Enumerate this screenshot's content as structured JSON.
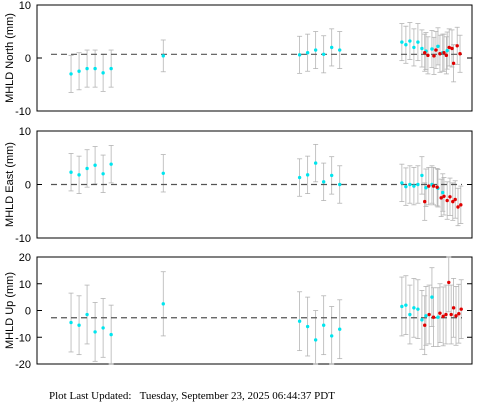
{
  "footer": {
    "label": "Plot Last Updated:",
    "value": "Tuesday, September 23, 2025 06:44:37 PDT"
  },
  "colors": {
    "cyan": "#00e5ee",
    "red": "#e00000",
    "error_bar": "#b4b4b4",
    "reference": "#555555",
    "axis": "#000000"
  },
  "chart_data": [
    {
      "type": "scatter",
      "ylabel": "MHLD North (mm)",
      "ylim": [
        -10,
        10
      ],
      "yticks": [
        -10,
        0,
        10
      ],
      "xlim": [
        0,
        100
      ],
      "reference_line": 0.7,
      "series": [
        {
          "color": "cyan",
          "points": [
            {
              "x": 4,
              "y": -3,
              "e": 3.5
            },
            {
              "x": 6,
              "y": -2.5,
              "e": 3.5
            },
            {
              "x": 8,
              "y": -2,
              "e": 3.5
            },
            {
              "x": 10,
              "y": -2,
              "e": 3.5
            },
            {
              "x": 12,
              "y": -2.8,
              "e": 3.5
            },
            {
              "x": 14,
              "y": -2,
              "e": 3.5
            },
            {
              "x": 27,
              "y": 0.4,
              "e": 3
            },
            {
              "x": 61,
              "y": 0.6,
              "e": 3.5
            },
            {
              "x": 63,
              "y": 1,
              "e": 3.5
            },
            {
              "x": 65,
              "y": 1.5,
              "e": 3.5
            },
            {
              "x": 67,
              "y": 0.7,
              "e": 3.5
            },
            {
              "x": 69,
              "y": 2,
              "e": 3.5
            },
            {
              "x": 71,
              "y": 1.5,
              "e": 3.5
            },
            {
              "x": 86.5,
              "y": 3,
              "e": 3.5
            },
            {
              "x": 87.5,
              "y": 2.5,
              "e": 3.5
            },
            {
              "x": 88.5,
              "y": 3.2,
              "e": 3.5
            },
            {
              "x": 89.5,
              "y": 2,
              "e": 3.5
            },
            {
              "x": 90.5,
              "y": 3,
              "e": 3.5
            },
            {
              "x": 91.5,
              "y": 1.8,
              "e": 3.5
            },
            {
              "x": 92.5,
              "y": 1.3,
              "e": 3.5
            },
            {
              "x": 94,
              "y": 1.7,
              "e": 3.5
            },
            {
              "x": 95.5,
              "y": 2.2,
              "e": 3.5
            },
            {
              "x": 96.7,
              "y": 1,
              "e": 3.5
            },
            {
              "x": 97.8,
              "y": 1.4,
              "e": 3.5
            }
          ]
        },
        {
          "color": "red",
          "points": [
            {
              "x": 92.2,
              "y": 1,
              "e": 3.5
            },
            {
              "x": 93,
              "y": 0.5,
              "e": 3.5
            },
            {
              "x": 94.5,
              "y": 0.4,
              "e": 3.5
            },
            {
              "x": 95,
              "y": 1.5,
              "e": 3.5
            },
            {
              "x": 96,
              "y": 0.8,
              "e": 3.5
            },
            {
              "x": 97,
              "y": 1,
              "e": 3.5
            },
            {
              "x": 97.6,
              "y": 0.5,
              "e": 3.5
            },
            {
              "x": 98.3,
              "y": 2,
              "e": 3.5
            },
            {
              "x": 99,
              "y": 1.8,
              "e": 3.5
            },
            {
              "x": 99.4,
              "y": -1,
              "e": 3.5
            },
            {
              "x": 100.3,
              "y": 2.3,
              "e": 3.5
            },
            {
              "x": 101,
              "y": 0.8,
              "e": 3.5
            }
          ]
        }
      ]
    },
    {
      "type": "scatter",
      "ylabel": "MHLD East (mm)",
      "ylim": [
        -10,
        10
      ],
      "yticks": [
        -10,
        0,
        10
      ],
      "xlim": [
        0,
        100
      ],
      "reference_line": 0,
      "series": [
        {
          "color": "cyan",
          "points": [
            {
              "x": 4,
              "y": 2.3,
              "e": 3.5
            },
            {
              "x": 6,
              "y": 1.8,
              "e": 3.5
            },
            {
              "x": 8,
              "y": 3,
              "e": 3.5
            },
            {
              "x": 10,
              "y": 3.6,
              "e": 3.5
            },
            {
              "x": 12,
              "y": 2,
              "e": 3.5
            },
            {
              "x": 14,
              "y": 3.8,
              "e": 3.5
            },
            {
              "x": 27,
              "y": 2.1,
              "e": 3.5
            },
            {
              "x": 61,
              "y": 1.3,
              "e": 3.5
            },
            {
              "x": 63,
              "y": 1.8,
              "e": 3.5
            },
            {
              "x": 65,
              "y": 4,
              "e": 3.5
            },
            {
              "x": 67,
              "y": 0.5,
              "e": 3.5
            },
            {
              "x": 69,
              "y": 1.7,
              "e": 3.5
            },
            {
              "x": 71,
              "y": 0,
              "e": 3.5
            },
            {
              "x": 86.5,
              "y": 0.3,
              "e": 3.5
            },
            {
              "x": 87.5,
              "y": -0.4,
              "e": 3.5
            },
            {
              "x": 88.5,
              "y": 0,
              "e": 3.5
            },
            {
              "x": 89.5,
              "y": -0.3,
              "e": 3.5
            },
            {
              "x": 90.5,
              "y": 0,
              "e": 3.5
            },
            {
              "x": 91.5,
              "y": 1.7,
              "e": 3.5
            },
            {
              "x": 92.5,
              "y": -0.6,
              "e": 3.5
            },
            {
              "x": 94,
              "y": 0,
              "e": 3.5
            },
            {
              "x": 95.5,
              "y": -0.7,
              "e": 3.5
            },
            {
              "x": 96.7,
              "y": -1.5,
              "e": 3.5
            }
          ]
        },
        {
          "color": "red",
          "points": [
            {
              "x": 92.2,
              "y": -3.2,
              "e": 3.5
            },
            {
              "x": 93.2,
              "y": -0.3,
              "e": 3.5
            },
            {
              "x": 94.4,
              "y": -0.3,
              "e": 3.5
            },
            {
              "x": 95.3,
              "y": -0.5,
              "e": 3.5
            },
            {
              "x": 96.3,
              "y": -2.5,
              "e": 3.5
            },
            {
              "x": 97,
              "y": -2.2,
              "e": 3.5
            },
            {
              "x": 97.8,
              "y": -3,
              "e": 3.5
            },
            {
              "x": 98.5,
              "y": -2.3,
              "e": 3.5
            },
            {
              "x": 99.2,
              "y": -3.2,
              "e": 3.5
            },
            {
              "x": 99.8,
              "y": -2.8,
              "e": 3.5
            },
            {
              "x": 100.5,
              "y": -4.2,
              "e": 3.5
            },
            {
              "x": 101.2,
              "y": -3.8,
              "e": 3.5
            }
          ]
        }
      ]
    },
    {
      "type": "scatter",
      "ylabel": "MHLD Up (mm)",
      "ylim": [
        -20,
        20
      ],
      "yticks": [
        -20,
        -10,
        0,
        10,
        20
      ],
      "xlim": [
        0,
        100
      ],
      "reference_line": -2.7,
      "series": [
        {
          "color": "cyan",
          "points": [
            {
              "x": 4,
              "y": -4.5,
              "e": 11
            },
            {
              "x": 6,
              "y": -5.5,
              "e": 11
            },
            {
              "x": 8,
              "y": -1.5,
              "e": 11
            },
            {
              "x": 10,
              "y": -8,
              "e": 11
            },
            {
              "x": 12,
              "y": -6.5,
              "e": 11
            },
            {
              "x": 14,
              "y": -9,
              "e": 11
            },
            {
              "x": 27,
              "y": 2.5,
              "e": 12
            },
            {
              "x": 61,
              "y": -4,
              "e": 11
            },
            {
              "x": 63,
              "y": -6,
              "e": 11
            },
            {
              "x": 65,
              "y": -11,
              "e": 11
            },
            {
              "x": 67,
              "y": -5.5,
              "e": 11
            },
            {
              "x": 69,
              "y": -9.5,
              "e": 11
            },
            {
              "x": 71,
              "y": -7,
              "e": 11
            },
            {
              "x": 86.5,
              "y": 1.5,
              "e": 11
            },
            {
              "x": 87.5,
              "y": 2,
              "e": 11
            },
            {
              "x": 88.5,
              "y": -1.5,
              "e": 11
            },
            {
              "x": 89.5,
              "y": 1,
              "e": 11
            },
            {
              "x": 90.5,
              "y": 0.5,
              "e": 11
            },
            {
              "x": 91.5,
              "y": -3.5,
              "e": 11
            },
            {
              "x": 92.5,
              "y": -2,
              "e": 11
            },
            {
              "x": 94,
              "y": 5,
              "e": 11
            },
            {
              "x": 95.5,
              "y": -2.5,
              "e": 11
            }
          ]
        },
        {
          "color": "red",
          "points": [
            {
              "x": 92.2,
              "y": -5.5,
              "e": 11
            },
            {
              "x": 93.3,
              "y": -1.5,
              "e": 11
            },
            {
              "x": 94.4,
              "y": -2.5,
              "e": 11
            },
            {
              "x": 96,
              "y": -1,
              "e": 11
            },
            {
              "x": 96.8,
              "y": -2.2,
              "e": 11
            },
            {
              "x": 97.5,
              "y": -1.5,
              "e": 11
            },
            {
              "x": 98.2,
              "y": 10.5,
              "e": 11
            },
            {
              "x": 98.8,
              "y": -1.5,
              "e": 11
            },
            {
              "x": 99.4,
              "y": 1,
              "e": 11
            },
            {
              "x": 100,
              "y": -2,
              "e": 11
            },
            {
              "x": 100.7,
              "y": -1.2,
              "e": 11
            },
            {
              "x": 101.3,
              "y": 0.5,
              "e": 11
            }
          ]
        }
      ]
    }
  ]
}
